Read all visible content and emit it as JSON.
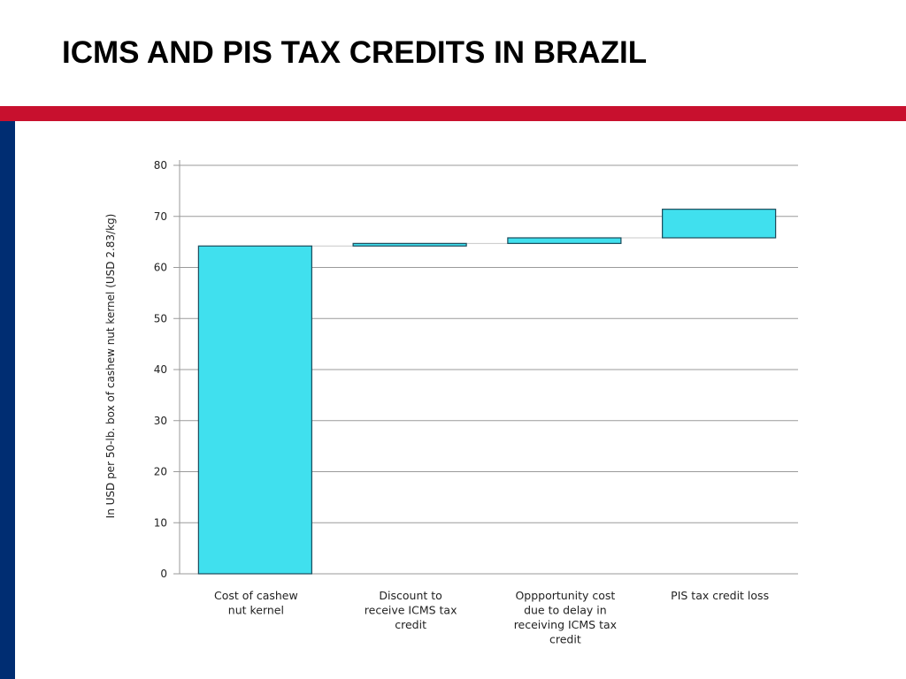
{
  "slide": {
    "title": "ICMS AND PIS TAX CREDITS IN BRAZIL",
    "accent_color": "#C8102E",
    "side_color": "#002D72"
  },
  "chart_data": {
    "type": "bar",
    "subtype": "waterfall",
    "ylabel": "In USD per 50-lb. box of cashew nut kernel (USD 2.83/kg)",
    "ylim": [
      0,
      80
    ],
    "yticks": [
      0,
      10,
      20,
      30,
      40,
      50,
      60,
      70,
      80
    ],
    "grid": true,
    "bar_color": "#40E0EE",
    "bar_stroke": "#1a4a5a",
    "categories": [
      [
        "Cost of cashew",
        "nut kernel"
      ],
      [
        "Discount to",
        "receive ICMS tax",
        "credit"
      ],
      [
        "Oppportunity cost",
        "due to delay in",
        "receiving ICMS tax",
        "credit"
      ],
      [
        "PIS tax credit loss"
      ]
    ],
    "values": [
      64.2,
      0.5,
      1.1,
      5.6
    ],
    "bases": [
      0,
      64.2,
      64.7,
      65.8
    ]
  }
}
